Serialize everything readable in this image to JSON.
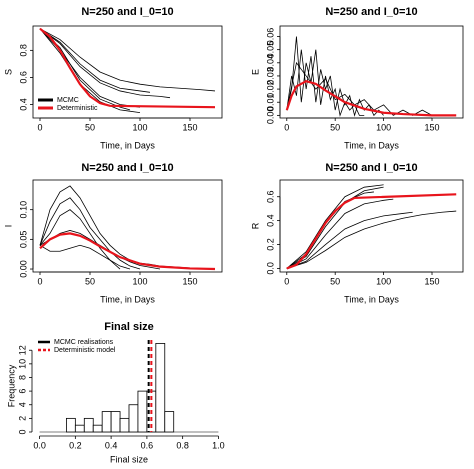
{
  "chart_data": [
    {
      "type": "line",
      "title": "N=250 and I_0=10",
      "x_label": "Time, in Days",
      "y_label": "S",
      "xlim": [
        -7,
        182
      ],
      "ylim": [
        0.3,
        0.98
      ],
      "xticks": [
        0,
        50,
        100,
        150
      ],
      "yticks": [
        0.4,
        0.6,
        0.8
      ],
      "legend": [
        {
          "label": "MCMC",
          "color": "#000000"
        },
        {
          "label": "Deterministic",
          "color": "#e8141c"
        }
      ],
      "series": [
        {
          "color": "#000000",
          "x": [
            0,
            20,
            40,
            60,
            80,
            100,
            120,
            140,
            160,
            175
          ],
          "values": [
            0.96,
            0.88,
            0.75,
            0.64,
            0.58,
            0.55,
            0.53,
            0.52,
            0.51,
            0.5
          ]
        },
        {
          "color": "#000000",
          "x": [
            0,
            20,
            40,
            60,
            80,
            100,
            120,
            130
          ],
          "values": [
            0.96,
            0.85,
            0.68,
            0.56,
            0.5,
            0.47,
            0.46,
            0.45
          ]
        },
        {
          "color": "#000000",
          "x": [
            0,
            20,
            40,
            60,
            80,
            100
          ],
          "values": [
            0.96,
            0.8,
            0.6,
            0.46,
            0.4,
            0.38
          ]
        },
        {
          "color": "#000000",
          "x": [
            0,
            20,
            40,
            60,
            80,
            100
          ],
          "values": [
            0.96,
            0.78,
            0.55,
            0.42,
            0.36,
            0.34
          ]
        },
        {
          "color": "#000000",
          "x": [
            0,
            20,
            40,
            60,
            80,
            90
          ],
          "values": [
            0.96,
            0.82,
            0.58,
            0.44,
            0.38,
            0.36
          ]
        },
        {
          "color": "#000000",
          "x": [
            0,
            20,
            40,
            60,
            80,
            100,
            110
          ],
          "values": [
            0.96,
            0.86,
            0.7,
            0.58,
            0.52,
            0.5,
            0.49
          ]
        },
        {
          "color": "#e8141c",
          "x": [
            0,
            10,
            20,
            30,
            40,
            50,
            60,
            70,
            175
          ],
          "values": [
            0.96,
            0.9,
            0.8,
            0.67,
            0.55,
            0.46,
            0.41,
            0.39,
            0.38
          ]
        }
      ]
    },
    {
      "type": "line",
      "title": "N=250 and I_0=10",
      "x_label": "Time, in Days",
      "y_label": "E",
      "xlim": [
        -7,
        182
      ],
      "ylim": [
        -0.002,
        0.068
      ],
      "xticks": [
        0,
        50,
        100,
        150
      ],
      "yticks": [
        {
          "value": 0,
          "label": "0.00"
        },
        0.01,
        0.02,
        0.03,
        0.04,
        0.05,
        0.06
      ],
      "series": [
        {
          "color": "#000000",
          "x": [
            0,
            5,
            10,
            15,
            20,
            25,
            30,
            35,
            40,
            45,
            50,
            55,
            60,
            65,
            70,
            75,
            80,
            85,
            90,
            95,
            100
          ],
          "values": [
            0.004,
            0.03,
            0.015,
            0.05,
            0.02,
            0.045,
            0.01,
            0.035,
            0.02,
            0.03,
            0.004,
            0.02,
            0.008,
            0.015,
            0,
            0.012,
            0.004,
            0.008,
            0,
            0.004,
            0
          ]
        },
        {
          "color": "#000000",
          "x": [
            0,
            5,
            10,
            15,
            20,
            25,
            30,
            35,
            40,
            45,
            50,
            55,
            60,
            65,
            70,
            75,
            80
          ],
          "values": [
            0.004,
            0.02,
            0.06,
            0.01,
            0.04,
            0.025,
            0.05,
            0.008,
            0.03,
            0.012,
            0.02,
            0,
            0.01,
            0.004,
            0.008,
            0,
            0
          ]
        },
        {
          "color": "#000000",
          "x": [
            0,
            10,
            20,
            30,
            40,
            50,
            60,
            70,
            80,
            90,
            100,
            110,
            120,
            130,
            140,
            150
          ],
          "values": [
            0.004,
            0.04,
            0.03,
            0.02,
            0.028,
            0.012,
            0.016,
            0.008,
            0.012,
            0.004,
            0.008,
            0,
            0.004,
            0,
            0.004,
            0
          ]
        },
        {
          "color": "#e8141c",
          "x": [
            0,
            5,
            10,
            20,
            30,
            40,
            60,
            80,
            100,
            120,
            150,
            175
          ],
          "values": [
            0.004,
            0.015,
            0.022,
            0.026,
            0.024,
            0.019,
            0.01,
            0.005,
            0.002,
            0.001,
            0,
            0
          ]
        }
      ]
    },
    {
      "type": "line",
      "title": "N=250 and I_0=10",
      "x_label": "Time, in Days",
      "y_label": "I",
      "xlim": [
        -7,
        182
      ],
      "ylim": [
        -0.005,
        0.15
      ],
      "xticks": [
        0,
        50,
        100,
        150
      ],
      "yticks": [
        {
          "value": 0,
          "label": "0.00"
        },
        0.05,
        {
          "value": 0.1,
          "label": "0.10"
        }
      ],
      "series": [
        {
          "color": "#000000",
          "x": [
            0,
            10,
            20,
            30,
            40,
            50,
            60,
            70,
            80,
            90,
            100
          ],
          "values": [
            0.04,
            0.08,
            0.11,
            0.12,
            0.1,
            0.07,
            0.05,
            0.03,
            0.015,
            0.005,
            0
          ]
        },
        {
          "color": "#000000",
          "x": [
            0,
            10,
            20,
            30,
            40,
            50,
            60,
            70,
            80
          ],
          "values": [
            0.04,
            0.06,
            0.09,
            0.1,
            0.085,
            0.06,
            0.035,
            0.015,
            0
          ]
        },
        {
          "color": "#000000",
          "x": [
            0,
            10,
            20,
            30,
            40,
            50,
            60,
            70,
            80,
            90,
            100,
            110,
            120
          ],
          "values": [
            0.04,
            0.05,
            0.06,
            0.065,
            0.06,
            0.05,
            0.04,
            0.03,
            0.02,
            0.012,
            0.006,
            0.003,
            0
          ]
        },
        {
          "color": "#000000",
          "x": [
            0,
            10,
            20,
            30,
            40,
            50,
            60,
            70,
            80,
            90,
            100,
            110,
            120,
            130,
            140,
            150,
            160,
            170
          ],
          "values": [
            0.04,
            0.1,
            0.13,
            0.14,
            0.12,
            0.09,
            0.06,
            0.04,
            0.025,
            0.015,
            0.01,
            0.008,
            0.005,
            0.004,
            0.003,
            0.002,
            0.001,
            0
          ]
        },
        {
          "color": "#000000",
          "x": [
            0,
            10,
            20,
            30,
            40,
            50,
            60,
            70,
            80,
            90
          ],
          "values": [
            0.04,
            0.03,
            0.03,
            0.035,
            0.04,
            0.035,
            0.025,
            0.015,
            0.005,
            0
          ]
        },
        {
          "color": "#e8141c",
          "x": [
            0,
            10,
            20,
            30,
            40,
            50,
            60,
            80,
            100,
            120,
            150,
            175
          ],
          "values": [
            0.035,
            0.05,
            0.058,
            0.06,
            0.056,
            0.048,
            0.038,
            0.02,
            0.009,
            0.004,
            0.001,
            0
          ]
        }
      ]
    },
    {
      "type": "line",
      "title": "N=250 and I_0=10",
      "x_label": "Time, in Days",
      "y_label": "R",
      "xlim": [
        -7,
        182
      ],
      "ylim": [
        -0.03,
        0.74
      ],
      "xticks": [
        0,
        50,
        100,
        150
      ],
      "yticks": [
        {
          "value": 0,
          "label": "0.0"
        },
        0.2,
        0.4,
        0.6
      ],
      "series": [
        {
          "color": "#000000",
          "x": [
            0,
            20,
            40,
            60,
            80,
            100
          ],
          "values": [
            0,
            0.1,
            0.35,
            0.55,
            0.65,
            0.68
          ]
        },
        {
          "color": "#000000",
          "x": [
            0,
            20,
            40,
            60,
            80,
            100
          ],
          "values": [
            0,
            0.14,
            0.4,
            0.6,
            0.68,
            0.7
          ]
        },
        {
          "color": "#000000",
          "x": [
            0,
            20,
            40,
            60,
            80,
            100,
            120,
            130
          ],
          "values": [
            0,
            0.06,
            0.2,
            0.33,
            0.4,
            0.44,
            0.46,
            0.47
          ]
        },
        {
          "color": "#000000",
          "x": [
            0,
            20,
            40,
            60,
            80,
            100,
            120,
            140,
            160,
            175
          ],
          "values": [
            0,
            0.05,
            0.15,
            0.26,
            0.33,
            0.38,
            0.42,
            0.45,
            0.47,
            0.48
          ]
        },
        {
          "color": "#000000",
          "x": [
            0,
            20,
            40,
            60,
            80,
            90
          ],
          "values": [
            0,
            0.12,
            0.38,
            0.56,
            0.63,
            0.64
          ]
        },
        {
          "color": "#000000",
          "x": [
            0,
            20,
            40,
            60,
            80,
            100,
            110
          ],
          "values": [
            0,
            0.08,
            0.28,
            0.46,
            0.54,
            0.57,
            0.58
          ]
        },
        {
          "color": "#e8141c",
          "x": [
            0,
            10,
            20,
            30,
            40,
            50,
            60,
            70,
            175
          ],
          "values": [
            0,
            0.03,
            0.12,
            0.25,
            0.38,
            0.48,
            0.55,
            0.59,
            0.62
          ]
        }
      ]
    },
    {
      "type": "histogram",
      "title": "Final size",
      "x_label": "Final size",
      "y_label": "Frequency",
      "xlim": [
        -0.02,
        1.02
      ],
      "ylim": [
        0,
        13.5
      ],
      "xticks": [
        {
          "value": 0,
          "label": "0.0"
        },
        0.2,
        0.4,
        0.6,
        0.8,
        {
          "value": 1,
          "label": "1.0"
        }
      ],
      "yticks": [
        0,
        2,
        4,
        6,
        8,
        10,
        12
      ],
      "bins": [
        0.15,
        0.2,
        0.25,
        0.3,
        0.35,
        0.4,
        0.45,
        0.5,
        0.55,
        0.6,
        0.65,
        0.7,
        0.75
      ],
      "counts": [
        2,
        1,
        2,
        1,
        3,
        3,
        2,
        4,
        6,
        6,
        13,
        3
      ],
      "vlines": [
        {
          "name": "MCMC realisations",
          "value": 0.61,
          "color": "#000000"
        },
        {
          "name": "Deterministic model",
          "value": 0.625,
          "color": "#e8141c"
        }
      ]
    }
  ]
}
